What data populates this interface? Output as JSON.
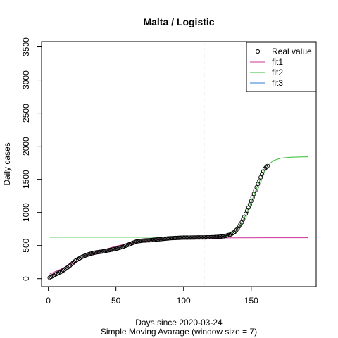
{
  "chart_data": {
    "type": "line",
    "title": "Malta / Logistic",
    "xlabel": "Days since 2020-03-24",
    "subtitle": "Simple Moving Avarage (window size = 7)",
    "ylabel": "Daily cases",
    "xlim": [
      -5,
      198
    ],
    "ylim": [
      -120,
      3580
    ],
    "x_ticks": [
      0,
      50,
      100,
      150
    ],
    "y_ticks": [
      0,
      500,
      1000,
      1500,
      2000,
      2500,
      3000,
      3500
    ],
    "vline_x": 115,
    "legend_position": "top-right",
    "legend": [
      {
        "label": "Real value",
        "marker": "circle",
        "color": "#000000"
      },
      {
        "label": "fit1",
        "marker": "line",
        "color": "#cc3399"
      },
      {
        "label": "fit2",
        "marker": "line",
        "color": "#33bb33"
      },
      {
        "label": "fit3",
        "marker": "line",
        "color": "#3377dd"
      }
    ],
    "real_value_knots": [
      [
        1,
        15
      ],
      [
        5,
        60
      ],
      [
        10,
        110
      ],
      [
        15,
        180
      ],
      [
        20,
        270
      ],
      [
        25,
        330
      ],
      [
        30,
        370
      ],
      [
        35,
        395
      ],
      [
        40,
        410
      ],
      [
        45,
        430
      ],
      [
        50,
        450
      ],
      [
        55,
        480
      ],
      [
        60,
        520
      ],
      [
        65,
        560
      ],
      [
        70,
        575
      ],
      [
        75,
        580
      ],
      [
        80,
        590
      ],
      [
        85,
        600
      ],
      [
        90,
        610
      ],
      [
        95,
        615
      ],
      [
        100,
        620
      ],
      [
        105,
        620
      ],
      [
        110,
        622
      ],
      [
        115,
        622
      ],
      [
        120,
        625
      ],
      [
        125,
        630
      ],
      [
        130,
        640
      ],
      [
        135,
        670
      ],
      [
        138,
        710
      ],
      [
        140,
        760
      ],
      [
        143,
        850
      ],
      [
        146,
        980
      ],
      [
        149,
        1120
      ],
      [
        152,
        1280
      ],
      [
        155,
        1430
      ],
      [
        158,
        1580
      ],
      [
        160,
        1660
      ],
      [
        162,
        1700
      ]
    ],
    "series": [
      {
        "name": "fit1",
        "color": "#cc3399",
        "points": [
          [
            1,
            70
          ],
          [
            10,
            150
          ],
          [
            20,
            250
          ],
          [
            30,
            350
          ],
          [
            40,
            430
          ],
          [
            50,
            490
          ],
          [
            60,
            535
          ],
          [
            70,
            565
          ],
          [
            80,
            585
          ],
          [
            90,
            598
          ],
          [
            100,
            606
          ],
          [
            110,
            611
          ],
          [
            120,
            614
          ],
          [
            140,
            616
          ],
          [
            160,
            617
          ],
          [
            192,
            617
          ]
        ]
      },
      {
        "name": "fit2",
        "color": "#33bb33",
        "points": [
          [
            1,
            625
          ],
          [
            110,
            625
          ],
          [
            120,
            627
          ],
          [
            128,
            635
          ],
          [
            134,
            660
          ],
          [
            138,
            710
          ],
          [
            142,
            810
          ],
          [
            146,
            960
          ],
          [
            150,
            1150
          ],
          [
            154,
            1370
          ],
          [
            158,
            1560
          ],
          [
            162,
            1700
          ],
          [
            166,
            1780
          ],
          [
            172,
            1820
          ],
          [
            180,
            1835
          ],
          [
            192,
            1840
          ]
        ]
      },
      {
        "name": "fit3",
        "color": "#3377dd",
        "points": []
      }
    ]
  }
}
